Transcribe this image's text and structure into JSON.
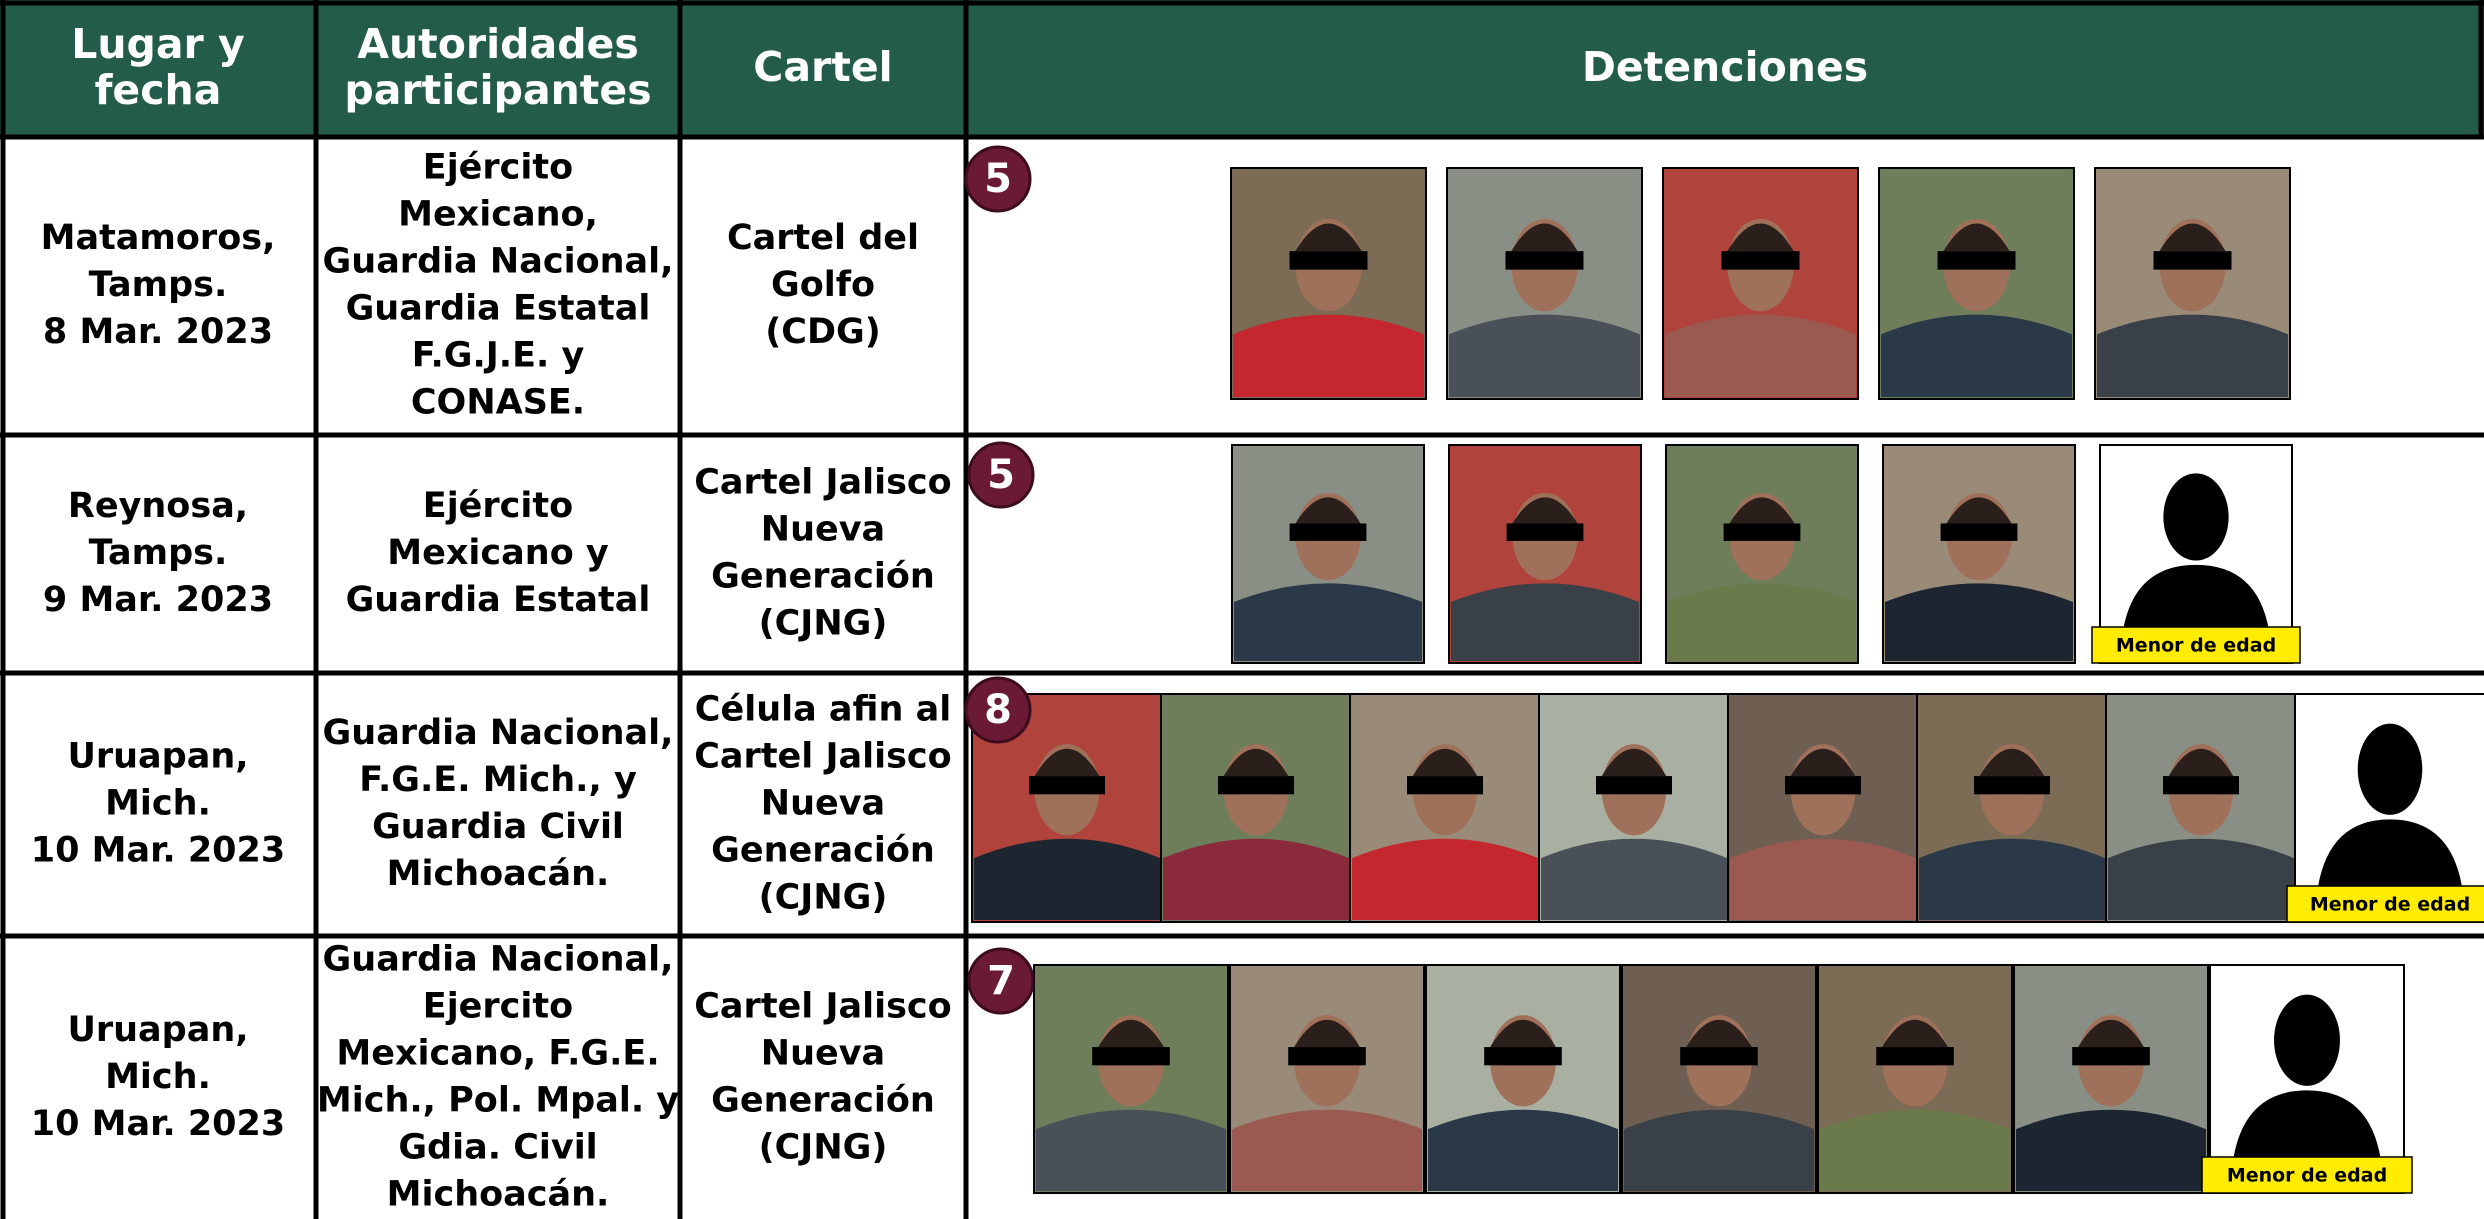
{
  "table": {
    "headers": [
      [
        "Lugar y",
        "fecha"
      ],
      [
        "Autoridades",
        "participantes"
      ],
      [
        "Cartel"
      ],
      [
        "Detenciones"
      ]
    ],
    "rows": [
      {
        "place": [
          "Matamoros,",
          "Tamps.",
          "8 Mar. 2023"
        ],
        "authorities": [
          "Ejército",
          "Mexicano,",
          "Guardia Nacional,",
          "Guardia Estatal",
          "F.G.J.E. y",
          "CONASE."
        ],
        "cartel": [
          "Cartel del",
          "Golfo",
          "(CDG)"
        ],
        "count": 5
      },
      {
        "place": [
          "Reynosa,",
          "Tamps.",
          "9 Mar. 2023"
        ],
        "authorities": [
          "Ejército",
          "Mexicano y",
          "Guardia Estatal"
        ],
        "cartel": [
          "Cartel Jalisco",
          "Nueva",
          "Generación",
          "(CJNG)"
        ],
        "count": 5,
        "minor": "Menor de edad"
      },
      {
        "place": [
          "Uruapan,",
          "Mich.",
          "10 Mar. 2023"
        ],
        "authorities": [
          "Guardia Nacional,",
          "F.G.E. Mich., y",
          "Guardia Civil",
          "Michoacán."
        ],
        "cartel": [
          "Célula afin al",
          "Cartel Jalisco",
          "Nueva",
          "Generación",
          "(CJNG)"
        ],
        "count": 8,
        "minor": "Menor de edad"
      },
      {
        "place": [
          "Uruapan,",
          "Mich.",
          "10 Mar. 2023"
        ],
        "authorities": [
          "Guardia Nacional,",
          "Ejercito",
          "Mexicano, F.G.E.",
          "Mich., Pol. Mpal. y",
          "Gdia. Civil",
          "Michoacán."
        ],
        "cartel": [
          "Cartel Jalisco",
          "Nueva",
          "Generación",
          "(CJNG)"
        ],
        "count": 7,
        "minor": "Menor de edad"
      }
    ]
  }
}
